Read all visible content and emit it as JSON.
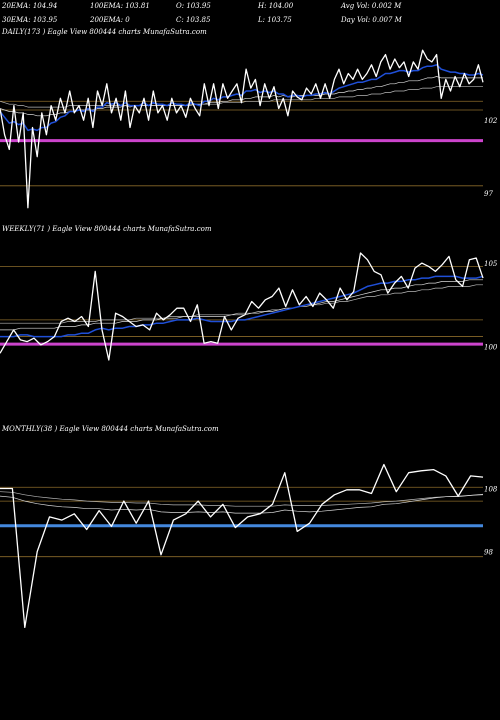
{
  "header": {
    "row1": [
      {
        "label": "20EMA: 104.94"
      },
      {
        "label": "100EMA: 103.81"
      },
      {
        "label": "O: 103.95"
      },
      {
        "label": "H: 104.00"
      },
      {
        "label": "Avg Vol: 0.002  M"
      }
    ],
    "row2": [
      {
        "label": "30EMA: 103.95"
      },
      {
        "label": "200EMA: 0"
      },
      {
        "label": "C: 103.85"
      },
      {
        "label": "L: 103.75"
      },
      {
        "label": "Day Vol: 0.007 M"
      }
    ]
  },
  "colors": {
    "price": "#ffffff",
    "ema": "#1f4fd8",
    "support": "#cc44cc",
    "monthly_support": "#4488dd",
    "guide": "#8a6a2a"
  },
  "chart_data": [
    {
      "type": "line",
      "title": "DAILY(173 ) Eagle  View  800444  charts MunafaSutra.com",
      "yticks": [
        102,
        97
      ],
      "ylim": [
        95.5,
        107.5
      ],
      "guides": [
        103.3,
        102.7,
        97.5
      ],
      "support_level": 100.6,
      "series": [
        {
          "role": "price",
          "values": [
            102.8,
            101.0,
            100.0,
            103.0,
            100.5,
            102.5,
            96.0,
            101.5,
            99.5,
            102.5,
            101.0,
            103.0,
            102.0,
            103.5,
            102.5,
            104.0,
            102.5,
            103.0,
            102.0,
            103.5,
            101.5,
            104.0,
            103.0,
            104.5,
            102.5,
            103.5,
            102.0,
            104.0,
            101.5,
            103.0,
            102.5,
            103.5,
            102.0,
            104.0,
            102.5,
            103.0,
            102.0,
            103.5,
            102.5,
            103.0,
            102.2,
            103.5,
            102.8,
            102.3,
            104.5,
            103.0,
            104.5,
            102.8,
            104.5,
            103.5,
            104.0,
            104.5,
            103.2,
            105.5,
            104.2,
            104.8,
            103.0,
            104.5,
            103.5,
            104.3,
            102.8,
            103.5,
            102.3,
            104.0,
            103.6,
            103.4,
            104.2,
            103.8,
            104.5,
            103.5,
            104.5,
            103.5,
            104.8,
            105.5,
            104.5,
            105.2,
            104.8,
            105.5,
            104.8,
            105.2,
            105.8,
            105.0,
            106.0,
            106.5,
            105.5,
            106.2,
            105.6,
            106.0,
            105.0,
            106.0,
            105.5,
            106.8,
            106.2,
            106.0,
            106.5,
            103.5,
            104.8,
            104.0,
            105.0,
            104.3,
            105.2,
            104.5,
            104.8,
            105.8,
            104.6
          ]
        },
        {
          "role": "ema_fast",
          "values": [
            102.6,
            102.2,
            101.8,
            101.9,
            101.7,
            101.8,
            101.3,
            101.4,
            101.3,
            101.5,
            101.5,
            101.8,
            101.9,
            102.2,
            102.3,
            102.6,
            102.6,
            102.7,
            102.6,
            102.8,
            102.6,
            102.9,
            102.9,
            103.2,
            103.1,
            103.2,
            103.0,
            103.2,
            103.0,
            103.0,
            103.0,
            103.2,
            103.0,
            103.2,
            103.1,
            103.1,
            103.0,
            103.2,
            103.1,
            103.1,
            103.0,
            103.2,
            103.1,
            103.0,
            103.3,
            103.3,
            103.5,
            103.4,
            103.6,
            103.6,
            103.7,
            103.8,
            103.7,
            104.0,
            104.0,
            104.1,
            103.9,
            104.0,
            103.9,
            104.0,
            103.8,
            103.8,
            103.6,
            103.7,
            103.7,
            103.6,
            103.7,
            103.7,
            103.8,
            103.8,
            103.9,
            103.8,
            104.0,
            104.2,
            104.3,
            104.4,
            104.5,
            104.6,
            104.6,
            104.7,
            104.8,
            104.8,
            105.0,
            105.2,
            105.2,
            105.3,
            105.4,
            105.4,
            105.3,
            105.4,
            105.4,
            105.6,
            105.7,
            105.7,
            105.8,
            105.5,
            105.4,
            105.3,
            105.3,
            105.2,
            105.2,
            105.1,
            105.1,
            105.2,
            105.1
          ]
        },
        {
          "role": "ema_mid",
          "values": [
            102.8,
            102.7,
            102.6,
            102.6,
            102.5,
            102.5,
            102.4,
            102.4,
            102.3,
            102.3,
            102.3,
            102.4,
            102.4,
            102.5,
            102.5,
            102.6,
            102.6,
            102.7,
            102.7,
            102.7,
            102.7,
            102.8,
            102.8,
            102.9,
            102.9,
            102.9,
            102.9,
            103.0,
            102.9,
            103.0,
            103.0,
            103.0,
            103.0,
            103.0,
            103.0,
            103.0,
            103.0,
            103.0,
            103.0,
            103.0,
            103.0,
            103.1,
            103.1,
            103.1,
            103.1,
            103.2,
            103.2,
            103.2,
            103.3,
            103.3,
            103.4,
            103.4,
            103.4,
            103.5,
            103.5,
            103.6,
            103.6,
            103.6,
            103.6,
            103.7,
            103.6,
            103.7,
            103.6,
            103.6,
            103.7,
            103.7,
            103.7,
            103.7,
            103.7,
            103.7,
            103.8,
            103.8,
            103.8,
            103.9,
            103.9,
            104.0,
            104.0,
            104.1,
            104.1,
            104.2,
            104.2,
            104.3,
            104.3,
            104.4,
            104.5,
            104.5,
            104.6,
            104.6,
            104.7,
            104.7,
            104.7,
            104.8,
            104.9,
            104.9,
            105.0,
            104.9,
            104.9,
            104.9,
            104.9,
            104.9,
            104.9,
            104.9,
            104.9,
            104.9,
            104.9
          ]
        },
        {
          "role": "ema_slow",
          "values": [
            103.3,
            103.2,
            103.1,
            103.1,
            103.0,
            103.0,
            102.9,
            102.9,
            102.9,
            102.9,
            102.9,
            102.9,
            102.9,
            102.9,
            102.9,
            103.0,
            103.0,
            103.0,
            103.0,
            103.0,
            103.0,
            103.0,
            103.0,
            103.0,
            103.0,
            103.0,
            103.0,
            103.0,
            103.0,
            103.0,
            103.0,
            103.0,
            103.0,
            103.0,
            103.0,
            103.0,
            103.0,
            103.0,
            103.0,
            103.0,
            103.0,
            103.0,
            103.1,
            103.1,
            103.1,
            103.1,
            103.1,
            103.1,
            103.2,
            103.2,
            103.2,
            103.2,
            103.2,
            103.3,
            103.3,
            103.3,
            103.3,
            103.3,
            103.3,
            103.4,
            103.4,
            103.4,
            103.4,
            103.4,
            103.4,
            103.4,
            103.4,
            103.4,
            103.5,
            103.5,
            103.5,
            103.5,
            103.5,
            103.6,
            103.6,
            103.6,
            103.6,
            103.7,
            103.7,
            103.7,
            103.8,
            103.8,
            103.8,
            103.9,
            103.9,
            104.0,
            104.0,
            104.0,
            104.1,
            104.1,
            104.1,
            104.2,
            104.2,
            104.2,
            104.3,
            104.3,
            104.3,
            104.3,
            104.3,
            104.3,
            104.3,
            104.3,
            104.3,
            104.3,
            104.3
          ]
        }
      ]
    },
    {
      "type": "line",
      "title": "WEEKLY(71 ) Eagle  View  800444  charts MunafaSutra.com",
      "yticks": [
        105,
        100
      ],
      "ylim": [
        98,
        106.5
      ],
      "guides": [
        104.8,
        101.6,
        100.6
      ],
      "support_level": 100.15,
      "series": [
        {
          "role": "price",
          "values": [
            99.6,
            100.3,
            101.0,
            100.4,
            100.3,
            100.5,
            100.1,
            100.3,
            100.6,
            101.5,
            101.7,
            101.5,
            101.8,
            101.2,
            104.5,
            101.0,
            99.2,
            102.0,
            101.8,
            101.5,
            101.2,
            101.3,
            101.0,
            102.0,
            101.6,
            101.9,
            102.3,
            102.3,
            101.5,
            102.5,
            100.2,
            100.3,
            100.2,
            101.8,
            101.0,
            101.7,
            101.9,
            102.7,
            102.3,
            102.8,
            103.0,
            103.5,
            102.4,
            103.4,
            102.5,
            103.0,
            102.4,
            103.2,
            102.8,
            102.3,
            103.5,
            102.8,
            103.3,
            105.6,
            105.2,
            104.5,
            104.3,
            103.2,
            103.8,
            104.2,
            103.5,
            104.7,
            105.0,
            104.8,
            104.5,
            104.9,
            105.4,
            104.0,
            103.6,
            105.2,
            105.3,
            104.1
          ]
        },
        {
          "role": "ema_fast",
          "values": [
            100.6,
            100.6,
            100.6,
            100.7,
            100.7,
            100.6,
            100.6,
            100.6,
            100.6,
            100.6,
            100.7,
            100.7,
            100.8,
            100.8,
            101.0,
            101.1,
            101.0,
            101.1,
            101.1,
            101.2,
            101.2,
            101.3,
            101.3,
            101.4,
            101.4,
            101.5,
            101.6,
            101.6,
            101.6,
            101.7,
            101.6,
            101.5,
            101.5,
            101.5,
            101.5,
            101.6,
            101.6,
            101.7,
            101.8,
            101.9,
            102.0,
            102.1,
            102.2,
            102.3,
            102.4,
            102.5,
            102.6,
            102.7,
            102.8,
            102.9,
            103.0,
            103.1,
            103.2,
            103.4,
            103.6,
            103.7,
            103.8,
            103.8,
            103.9,
            103.9,
            104.0,
            104.0,
            104.1,
            104.1,
            104.2,
            104.2,
            104.2,
            104.2,
            104.1,
            104.1,
            104.1,
            104.2
          ]
        },
        {
          "role": "ema_mid",
          "values": [
            101.0,
            101.0,
            101.0,
            101.1,
            101.1,
            101.1,
            101.1,
            101.1,
            101.1,
            101.2,
            101.2,
            101.2,
            101.3,
            101.3,
            101.4,
            101.4,
            101.4,
            101.4,
            101.5,
            101.5,
            101.5,
            101.6,
            101.6,
            101.6,
            101.7,
            101.7,
            101.7,
            101.8,
            101.8,
            101.8,
            101.8,
            101.8,
            101.8,
            101.8,
            101.9,
            101.9,
            101.9,
            102.0,
            102.0,
            102.1,
            102.1,
            102.2,
            102.3,
            102.3,
            102.4,
            102.5,
            102.5,
            102.6,
            102.7,
            102.7,
            102.8,
            102.9,
            103.0,
            103.1,
            103.2,
            103.3,
            103.4,
            103.4,
            103.5,
            103.5,
            103.6,
            103.7,
            103.7,
            103.8,
            103.8,
            103.9,
            103.9,
            103.9,
            103.9,
            104.0,
            104.0,
            104.0
          ]
        },
        {
          "role": "ema_slow",
          "values": [
            101.4,
            101.4,
            101.4,
            101.4,
            101.4,
            101.4,
            101.4,
            101.4,
            101.4,
            101.4,
            101.5,
            101.5,
            101.5,
            101.5,
            101.5,
            101.6,
            101.6,
            101.6,
            101.6,
            101.6,
            101.7,
            101.7,
            101.7,
            101.7,
            101.7,
            101.8,
            101.8,
            101.8,
            101.8,
            101.9,
            101.9,
            101.9,
            101.9,
            101.9,
            101.9,
            102.0,
            102.0,
            102.0,
            102.1,
            102.1,
            102.2,
            102.2,
            102.3,
            102.3,
            102.4,
            102.4,
            102.5,
            102.5,
            102.6,
            102.6,
            102.7,
            102.7,
            102.8,
            102.9,
            103.0,
            103.0,
            103.1,
            103.1,
            103.2,
            103.2,
            103.3,
            103.3,
            103.4,
            103.4,
            103.5,
            103.5,
            103.6,
            103.6,
            103.6,
            103.6,
            103.7,
            103.7
          ]
        }
      ]
    },
    {
      "type": "line",
      "title": "MONTHLY(38 ) Eagle  View  800444  charts MunafaSutra.com",
      "yticks": [
        108,
        98
      ],
      "ylim": [
        84,
        116
      ],
      "guides": [
        108.2,
        106.0,
        97.2
      ],
      "support_level": 102.1,
      "series": [
        {
          "role": "price",
          "values": [
            108.0,
            108.0,
            86.0,
            98.0,
            103.5,
            103.0,
            104.0,
            101.5,
            104.5,
            102.0,
            106.0,
            102.5,
            106.0,
            97.5,
            103.0,
            104.0,
            106.0,
            103.5,
            105.5,
            101.8,
            103.5,
            104.0,
            105.5,
            110.5,
            101.2,
            102.5,
            105.5,
            107.0,
            107.8,
            107.8,
            107.2,
            111.8,
            107.5,
            110.5,
            110.8,
            111.0,
            110.0,
            106.8,
            110.0,
            109.8
          ]
        },
        {
          "role": "ema_mid",
          "values": [
            106.8,
            106.6,
            106.0,
            105.6,
            105.3,
            105.1,
            105.0,
            104.8,
            104.8,
            104.6,
            104.7,
            104.6,
            104.7,
            104.3,
            104.2,
            104.2,
            104.3,
            104.2,
            104.3,
            104.1,
            104.1,
            104.1,
            104.2,
            104.6,
            104.4,
            104.3,
            104.4,
            104.6,
            104.8,
            105.0,
            105.1,
            105.5,
            105.6,
            105.9,
            106.2,
            106.5,
            106.7,
            106.7,
            106.9,
            107.1
          ]
        },
        {
          "role": "ema_slow",
          "values": [
            107.5,
            107.4,
            107.0,
            106.7,
            106.5,
            106.3,
            106.2,
            106.0,
            105.9,
            105.8,
            105.8,
            105.7,
            105.7,
            105.5,
            105.4,
            105.4,
            105.4,
            105.3,
            105.3,
            105.2,
            105.2,
            105.2,
            105.2,
            105.4,
            105.3,
            105.3,
            105.3,
            105.4,
            105.5,
            105.6,
            105.7,
            105.9,
            106.0,
            106.2,
            106.4,
            106.6,
            106.7,
            106.8,
            106.9,
            107.0
          ]
        }
      ]
    }
  ]
}
